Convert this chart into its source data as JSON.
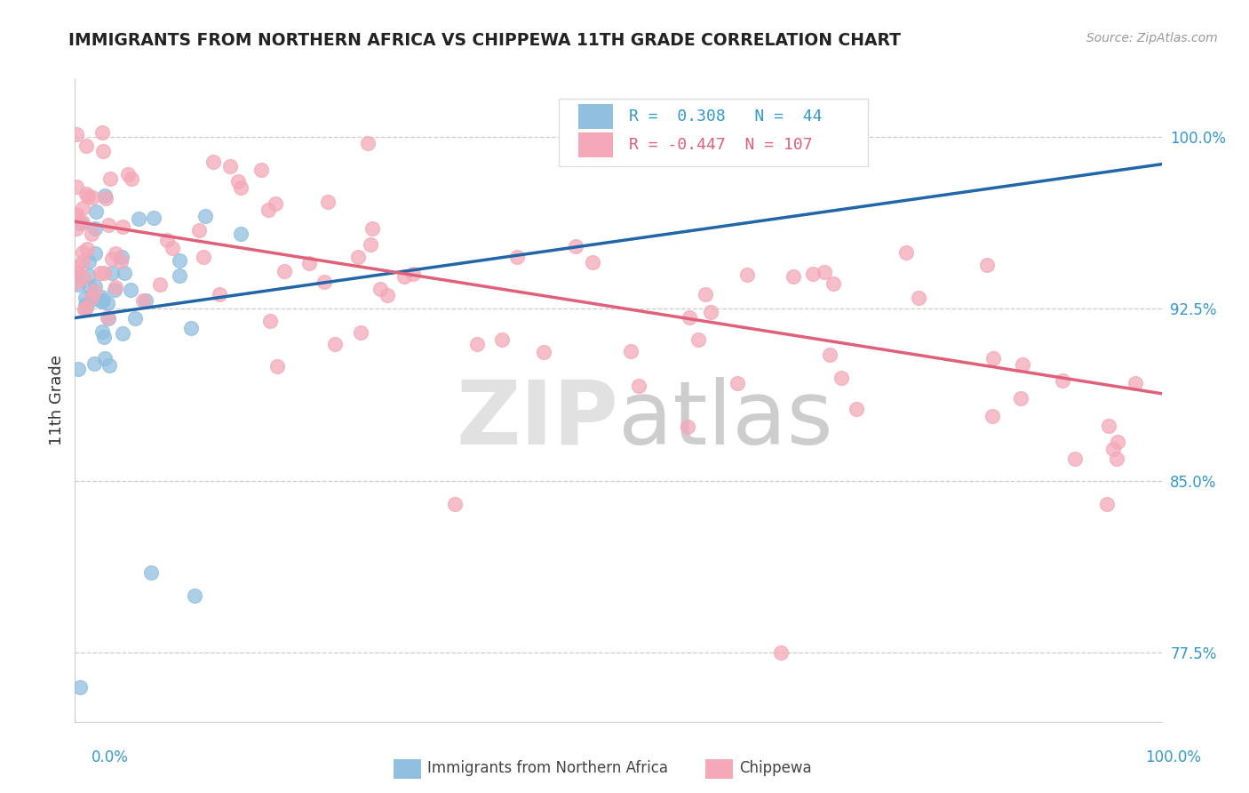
{
  "title": "IMMIGRANTS FROM NORTHERN AFRICA VS CHIPPEWA 11TH GRADE CORRELATION CHART",
  "source": "Source: ZipAtlas.com",
  "ylabel": "11th Grade",
  "ylabel_ticks": [
    "77.5%",
    "85.0%",
    "92.5%",
    "100.0%"
  ],
  "ylabel_values": [
    0.775,
    0.85,
    0.925,
    1.0
  ],
  "xmin": 0.0,
  "xmax": 1.0,
  "ymin": 0.745,
  "ymax": 1.025,
  "legend_blue_r": "0.308",
  "legend_blue_n": "44",
  "legend_pink_r": "-0.447",
  "legend_pink_n": "107",
  "blue_color": "#90bfdf",
  "pink_color": "#f4a8b8",
  "blue_line_color": "#2266aa",
  "pink_line_color": "#e0607a",
  "blue_line_x0": 0.0,
  "blue_line_y0": 0.921,
  "blue_line_x1": 1.0,
  "blue_line_y1": 0.988,
  "pink_line_x0": 0.0,
  "pink_line_y0": 0.963,
  "pink_line_x1": 1.0,
  "pink_line_y1": 0.888
}
